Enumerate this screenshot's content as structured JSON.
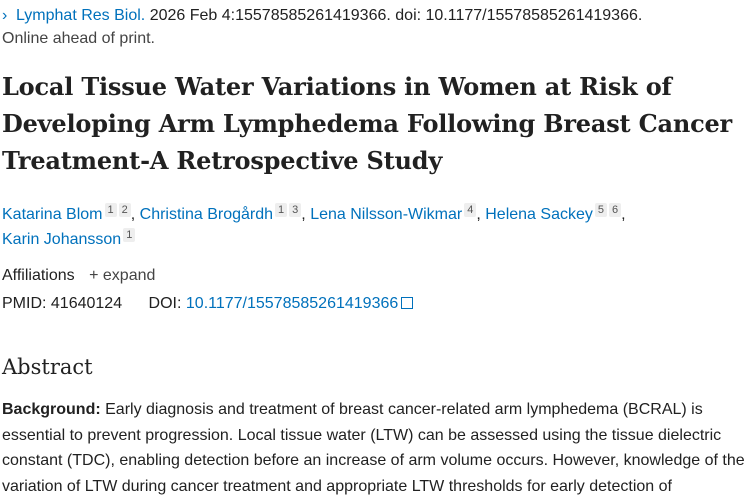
{
  "citation": {
    "journal": "Lymphat Res Biol.",
    "details": "2026 Feb 4:15578585261419366. doi: 10.1177/15578585261419366.",
    "status": "Online ahead of print."
  },
  "title": "Local Tissue Water Variations in Women at Risk of Developing Arm Lymphedema Following Breast Cancer Treatment-A Retrospective Study",
  "authors": [
    {
      "name": "Katarina Blom",
      "affs": [
        "1",
        "2"
      ]
    },
    {
      "name": "Christina Brogårdh",
      "affs": [
        "1",
        "3"
      ]
    },
    {
      "name": "Lena Nilsson-Wikmar",
      "affs": [
        "4"
      ]
    },
    {
      "name": "Helena Sackey",
      "affs": [
        "5",
        "6"
      ]
    },
    {
      "name": "Karin Johansson",
      "affs": [
        "1"
      ]
    }
  ],
  "affiliations": {
    "label": "Affiliations",
    "expand": "expand"
  },
  "ids": {
    "pmid_label": "PMID:",
    "pmid": "41640124",
    "doi_label": "DOI:",
    "doi": "10.1177/15578585261419366"
  },
  "abstract": {
    "heading": "Abstract",
    "background_label": "Background:",
    "background_text": "Early diagnosis and treatment of breast cancer-related arm lymphedema (BCRAL) is essential to prevent progression. Local tissue water (LTW) can be assessed using the tissue dielectric constant (TDC), enabling detection before an increase of arm volume occurs. However, knowledge of the variation of LTW during cancer treatment and appropriate LTW thresholds for early detection of"
  }
}
